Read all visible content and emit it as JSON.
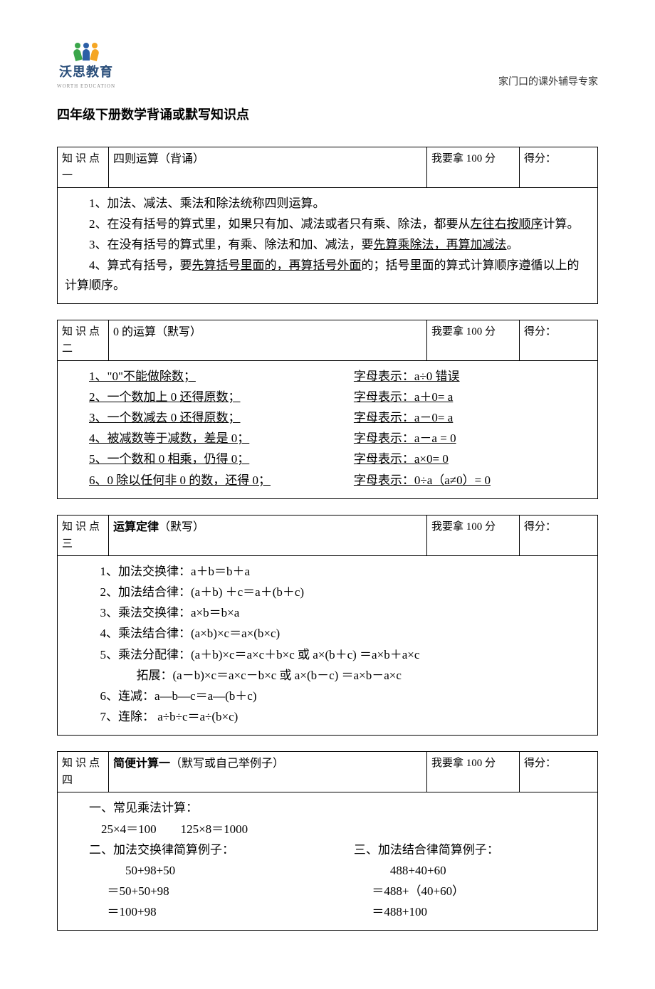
{
  "header": {
    "logo_text": "沃思教育",
    "logo_sub": "WORTH EDUCATION",
    "tagline": "家门口的课外辅导专家",
    "logo_colors": {
      "left": "#3aa64a",
      "mid": "#2b5fa6",
      "right": "#f5a623"
    }
  },
  "doc_title": "四年级下册数学背诵或默写知识点",
  "common": {
    "target": "我要拿 100 分",
    "score_label": "得分："
  },
  "block1": {
    "label": "知识点一",
    "topic": "四则运算（背诵）",
    "lines": {
      "l1": "1、加法、减法、乘法和除法统称四则运算。",
      "l2a": "2、在没有括号的算式里，如果只有加、减法或者只有乘、除法，都要从",
      "l2b": "左往右按顺序",
      "l2c": "计算。",
      "l3a": "3、在没有括号的算式里，有乘、除法和加、减法，要",
      "l3b": "先算乘除法，再算加减法",
      "l3c": "。",
      "l4a": "4、算式有括号，要",
      "l4b": "先算括号里面的，再算括号外面",
      "l4c": "的；括号里面的算式计算顺序遵循以上的计算顺序。"
    }
  },
  "block2": {
    "label": "知识点二",
    "topic": "0 的运算（默写）",
    "rows": [
      {
        "l": "1、\"0\"不能做除数；",
        "r": "字母表示：a÷0 错误"
      },
      {
        "l": "2、一个数加上 0 还得原数；",
        "r": "字母表示：a＋0= a"
      },
      {
        "l": "3、一个数减去 0 还得原数；",
        "r": "字母表示：a－0= a"
      },
      {
        "l": "4、被减数等于减数，差是 0；",
        "r": "字母表示：a－a = 0"
      },
      {
        "l": "5、一个数和 0 相乘，仍得 0；",
        "r": "字母表示：a×0= 0"
      },
      {
        "l": "6、0 除以任何非 0 的数，还得 0；",
        "r": "字母表示：0÷a（a≠0）= 0"
      }
    ]
  },
  "block3": {
    "label": "知识点三",
    "topic_strong": "运算定律",
    "topic_rest": "（默写）",
    "lines": {
      "l1": "1、加法交换律：a＋b＝b＋a",
      "l2": "2、加法结合律：(a＋b) ＋c＝a＋(b＋c)",
      "l3": "3、乘法交换律：a×b＝b×a",
      "l4": "4、乘法结合律：(a×b)×c＝a×(b×c)",
      "l5": "5、乘法分配律：(a＋b)×c＝a×c＋b×c  或  a×(b＋c) ＝a×b＋a×c",
      "l5b": "　　　拓展：(a－b)×c＝a×c－b×c 或  a×(b－c) ＝a×b－a×c",
      "l6": "6、连减：a—b—c＝a—(b＋c)",
      "l7": "7、连除： a÷b÷c＝a÷(b×c)"
    }
  },
  "block4": {
    "label": "知识点四",
    "topic_strong": "简便计算一",
    "topic_rest": "（默写或自己举例子）",
    "sec1_title": "一、常见乘法计算：",
    "sec1_body": "25×4＝100　　125×8＝1000",
    "sec2_title": "二、加法交换律简算例子：",
    "sec3_title": "三、加法结合律简算例子：",
    "left_calc": [
      "50+98+50",
      "＝50+50+98",
      "＝100+98"
    ],
    "right_calc": [
      "488+40+60",
      "＝488+（40+60）",
      "＝488+100"
    ]
  }
}
